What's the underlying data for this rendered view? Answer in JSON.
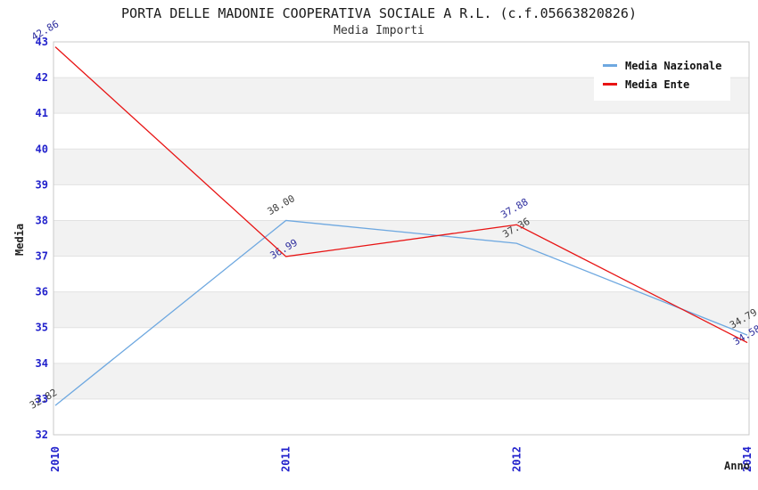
{
  "chart_data": {
    "type": "line",
    "title": "PORTA DELLE MADONIE COOPERATIVA SOCIALE A R.L. (c.f.05663820826)",
    "subtitle": "Media Importi",
    "xlabel": "Anno",
    "ylabel": "Media",
    "categories": [
      "2010",
      "2011",
      "2012",
      "2014"
    ],
    "series": [
      {
        "name": "Media Nazionale",
        "values": [
          32.82,
          38.0,
          37.36,
          34.79
        ],
        "labels": [
          "32.82",
          "38.00",
          "37.36",
          "34.79"
        ],
        "color": "#6EA8E0",
        "label_color": "#3C3C3C"
      },
      {
        "name": "Media Ente",
        "values": [
          42.86,
          36.99,
          37.88,
          34.58
        ],
        "labels": [
          "42.86",
          "36.99",
          "37.88",
          "34.58"
        ],
        "color": "#E81414",
        "label_color": "#2E2E9E"
      }
    ],
    "ylim": [
      32,
      43
    ],
    "yticks": [
      32,
      33,
      34,
      35,
      36,
      37,
      38,
      39,
      40,
      41,
      42,
      43
    ],
    "legend_position": "top-right",
    "grid": "horizontal-bands",
    "band_color": "#F2F2F2",
    "gridline_color": "#E2E2E2",
    "plot_border_color": "#C9C9C9",
    "tick_color": "#2222CC"
  }
}
